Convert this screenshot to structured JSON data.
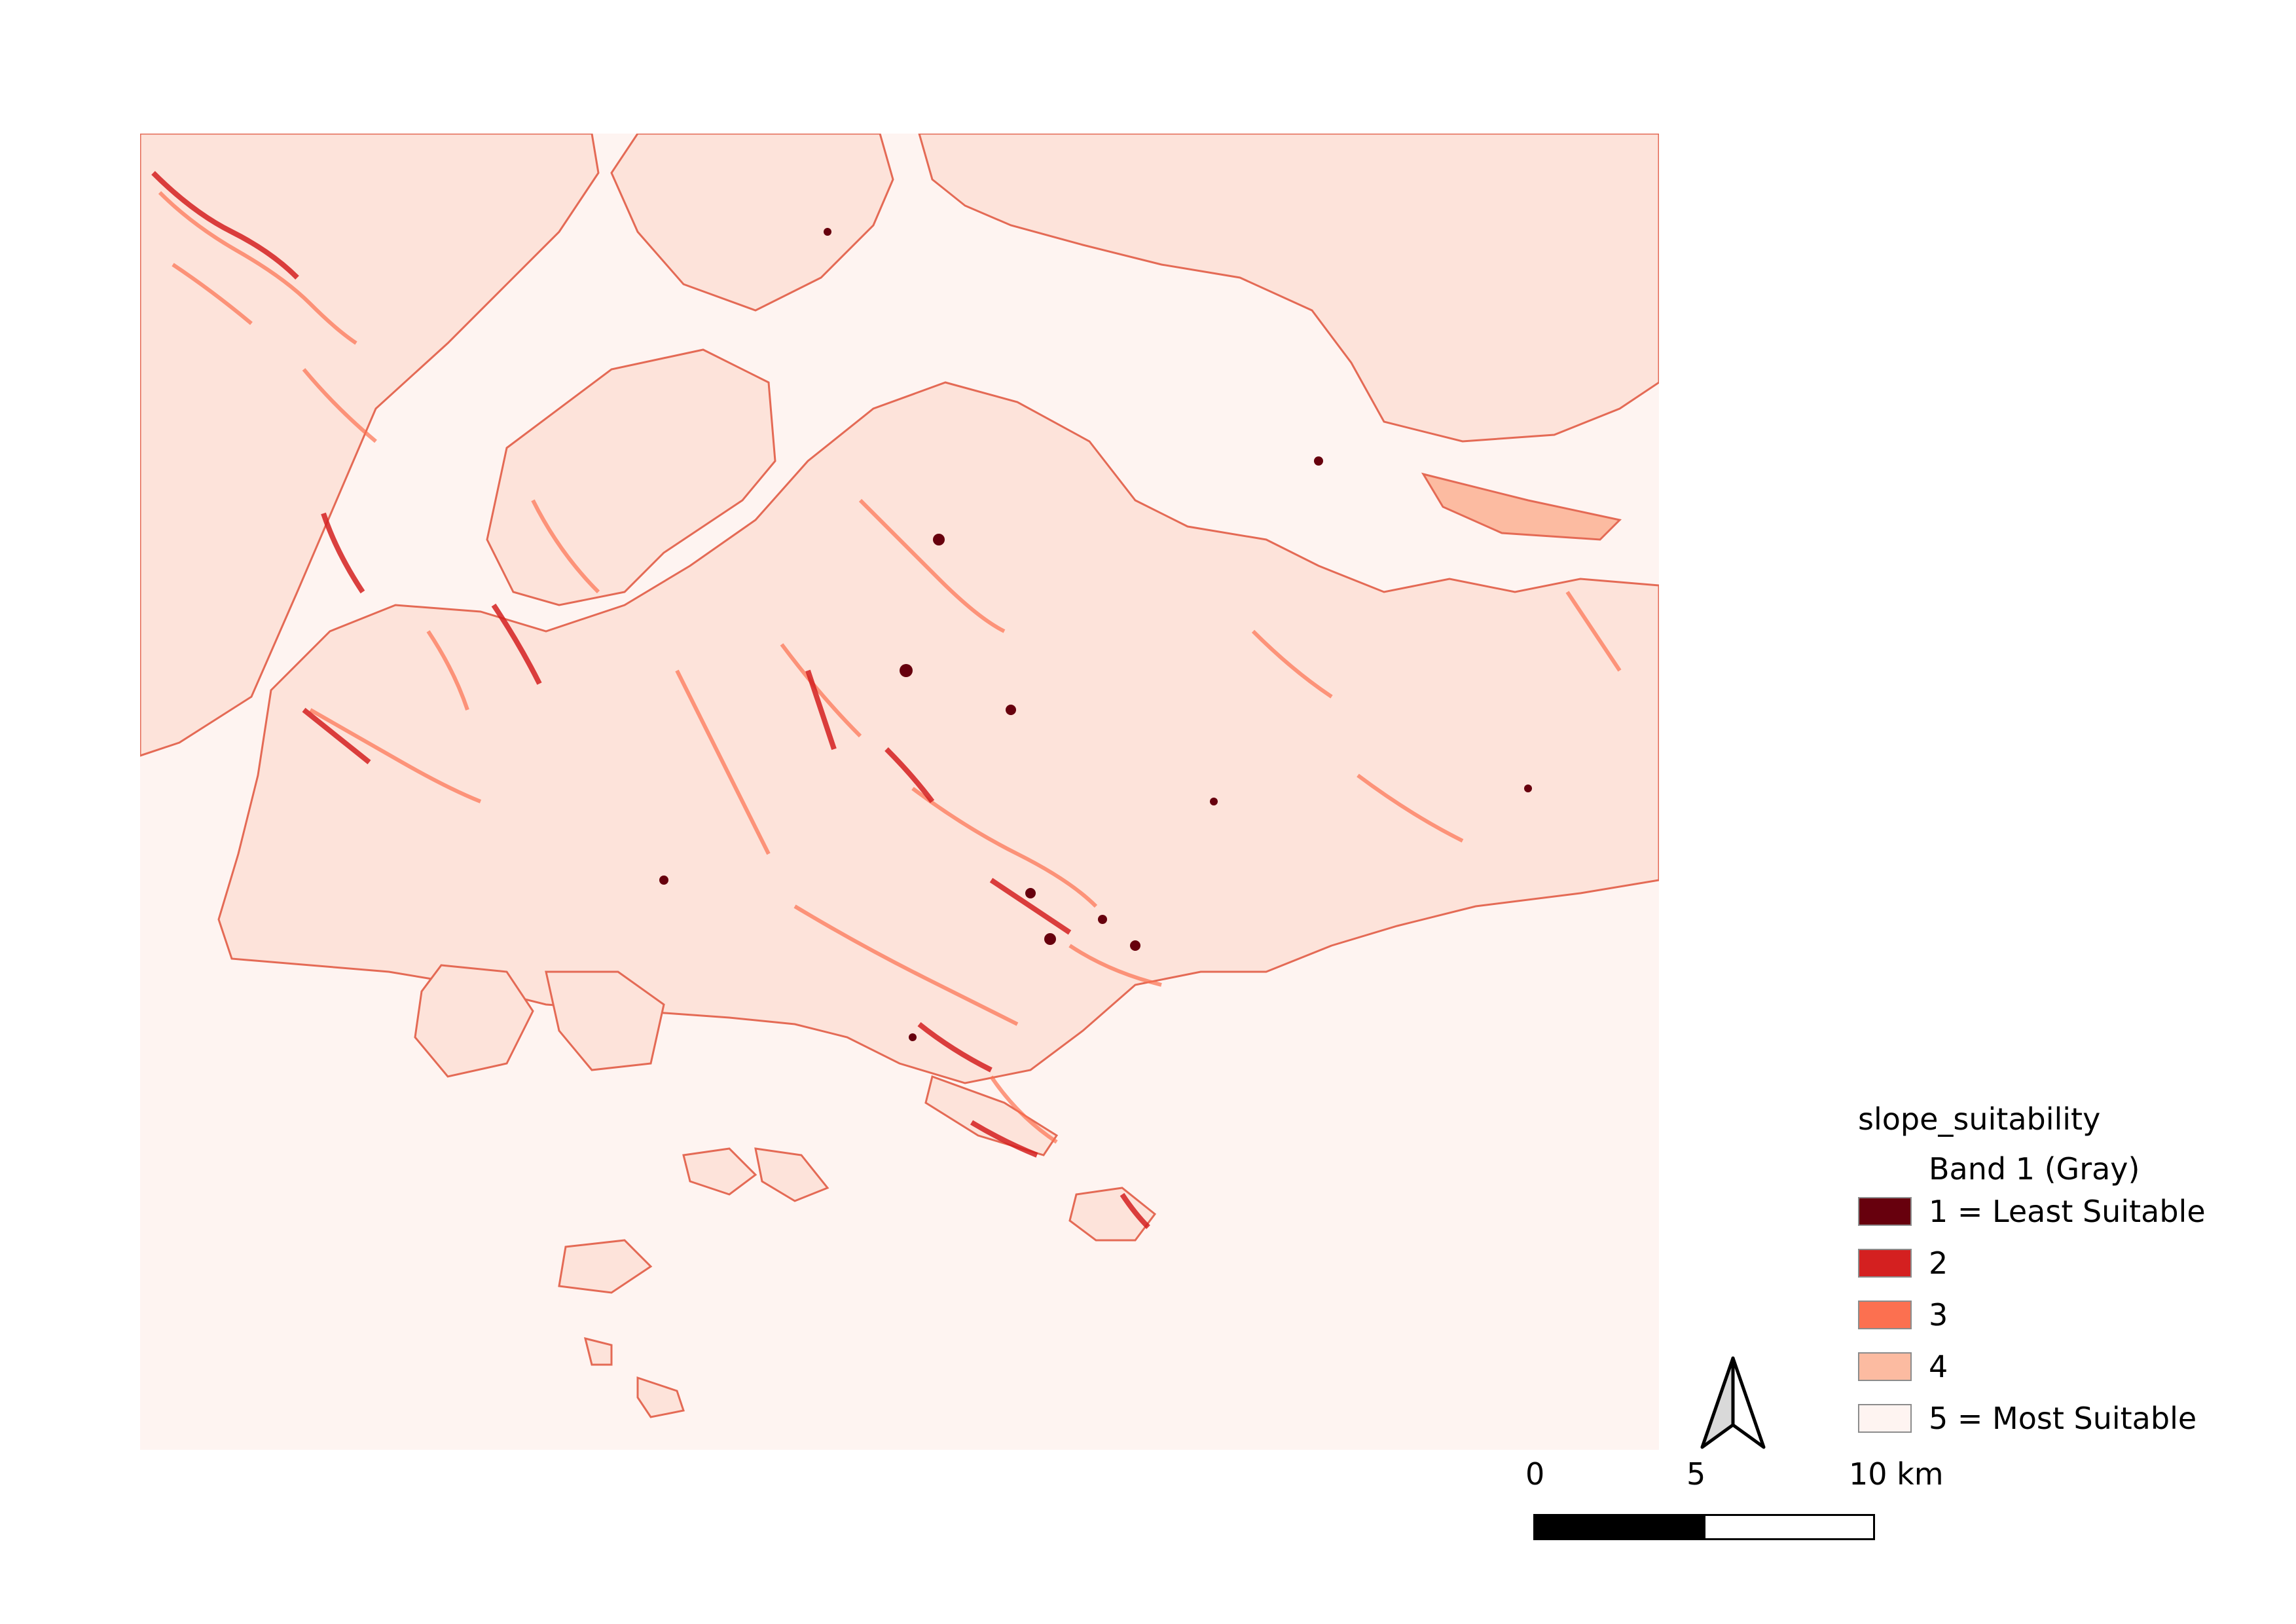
{
  "map": {
    "layer_name": "slope_suitability",
    "band_name": "Band 1 (Gray)",
    "background_color": "#fef4f1"
  },
  "legend": {
    "title": "slope_suitability",
    "band": "Band 1 (Gray)",
    "items": [
      {
        "label": "1 = Least Suitable",
        "color": "#67000d"
      },
      {
        "label": "2",
        "color": "#d42020"
      },
      {
        "label": "3",
        "color": "#fc7050"
      },
      {
        "label": "4",
        "color": "#fcbba1"
      },
      {
        "label": "5 = Most Suitable",
        "color": "#fef4f1"
      }
    ]
  },
  "scale_bar": {
    "labels": [
      "0",
      "5",
      "10 km"
    ]
  },
  "north_arrow": {
    "icon": "north-arrow-icon"
  }
}
